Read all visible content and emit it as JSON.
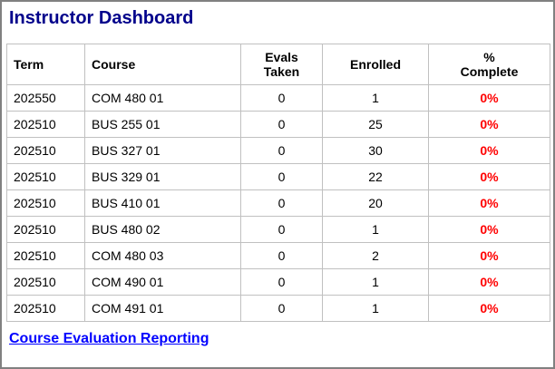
{
  "colors": {
    "title": "#00008B",
    "link": "#0000FF",
    "pct_complete": "#FF0000",
    "table_border": "#C0C0C0",
    "outer_border": "#808080",
    "text": "#000000",
    "background": "#FFFFFF"
  },
  "title": "Instructor Dashboard",
  "table": {
    "headers": [
      {
        "label": "Term",
        "align": "left"
      },
      {
        "label": "Course",
        "align": "left"
      },
      {
        "label": "Evals\nTaken",
        "align": "center"
      },
      {
        "label": "Enrolled",
        "align": "center"
      },
      {
        "label": "%\nComplete",
        "align": "center"
      }
    ],
    "rows": [
      {
        "term": "202550",
        "course": "COM 480 01",
        "evals_taken": "0",
        "enrolled": "1",
        "pct_complete": "0%"
      },
      {
        "term": "202510",
        "course": "BUS 255 01",
        "evals_taken": "0",
        "enrolled": "25",
        "pct_complete": "0%"
      },
      {
        "term": "202510",
        "course": "BUS 327 01",
        "evals_taken": "0",
        "enrolled": "30",
        "pct_complete": "0%"
      },
      {
        "term": "202510",
        "course": "BUS 329 01",
        "evals_taken": "0",
        "enrolled": "22",
        "pct_complete": "0%"
      },
      {
        "term": "202510",
        "course": "BUS 410 01",
        "evals_taken": "0",
        "enrolled": "20",
        "pct_complete": "0%"
      },
      {
        "term": "202510",
        "course": "BUS 480 02",
        "evals_taken": "0",
        "enrolled": "1",
        "pct_complete": "0%"
      },
      {
        "term": "202510",
        "course": "COM 480 03",
        "evals_taken": "0",
        "enrolled": "2",
        "pct_complete": "0%"
      },
      {
        "term": "202510",
        "course": "COM 490 01",
        "evals_taken": "0",
        "enrolled": "1",
        "pct_complete": "0%"
      },
      {
        "term": "202510",
        "course": "COM 491 01",
        "evals_taken": "0",
        "enrolled": "1",
        "pct_complete": "0%"
      }
    ]
  },
  "link": {
    "label": "Course Evaluation Reporting"
  }
}
